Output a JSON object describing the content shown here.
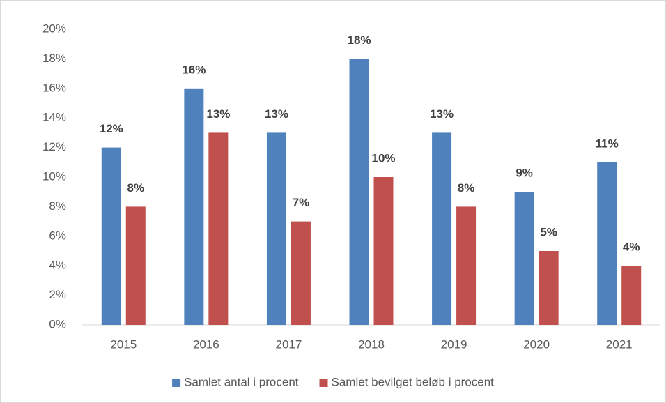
{
  "chart_data": {
    "type": "bar",
    "categories": [
      "2015",
      "2016",
      "2017",
      "2018",
      "2019",
      "2020",
      "2021"
    ],
    "series": [
      {
        "name": "Samlet antal i procent",
        "color": "#4f81bd",
        "values": [
          12,
          16,
          13,
          18,
          13,
          9,
          11
        ],
        "value_labels": [
          "12%",
          "16%",
          "13%",
          "18%",
          "13%",
          "9%",
          "11%"
        ]
      },
      {
        "name": "Samlet bevilget beløb i procent",
        "color": "#c0504d",
        "values": [
          8,
          13,
          7,
          10,
          8,
          5,
          4
        ],
        "value_labels": [
          "8%",
          "13%",
          "7%",
          "10%",
          "8%",
          "5%",
          "4%"
        ]
      }
    ],
    "ylim": [
      0,
      20
    ],
    "yticks": [
      {
        "value": 0,
        "label": "0%"
      },
      {
        "value": 2,
        "label": "2%"
      },
      {
        "value": 4,
        "label": "4%"
      },
      {
        "value": 6,
        "label": "6%"
      },
      {
        "value": 8,
        "label": "8%"
      },
      {
        "value": 10,
        "label": "10%"
      },
      {
        "value": 12,
        "label": "12%"
      },
      {
        "value": 14,
        "label": "14%"
      },
      {
        "value": 16,
        "label": "16%"
      },
      {
        "value": 18,
        "label": "18%"
      },
      {
        "value": 20,
        "label": "20%"
      }
    ],
    "grid": false,
    "legend": "bottom"
  }
}
